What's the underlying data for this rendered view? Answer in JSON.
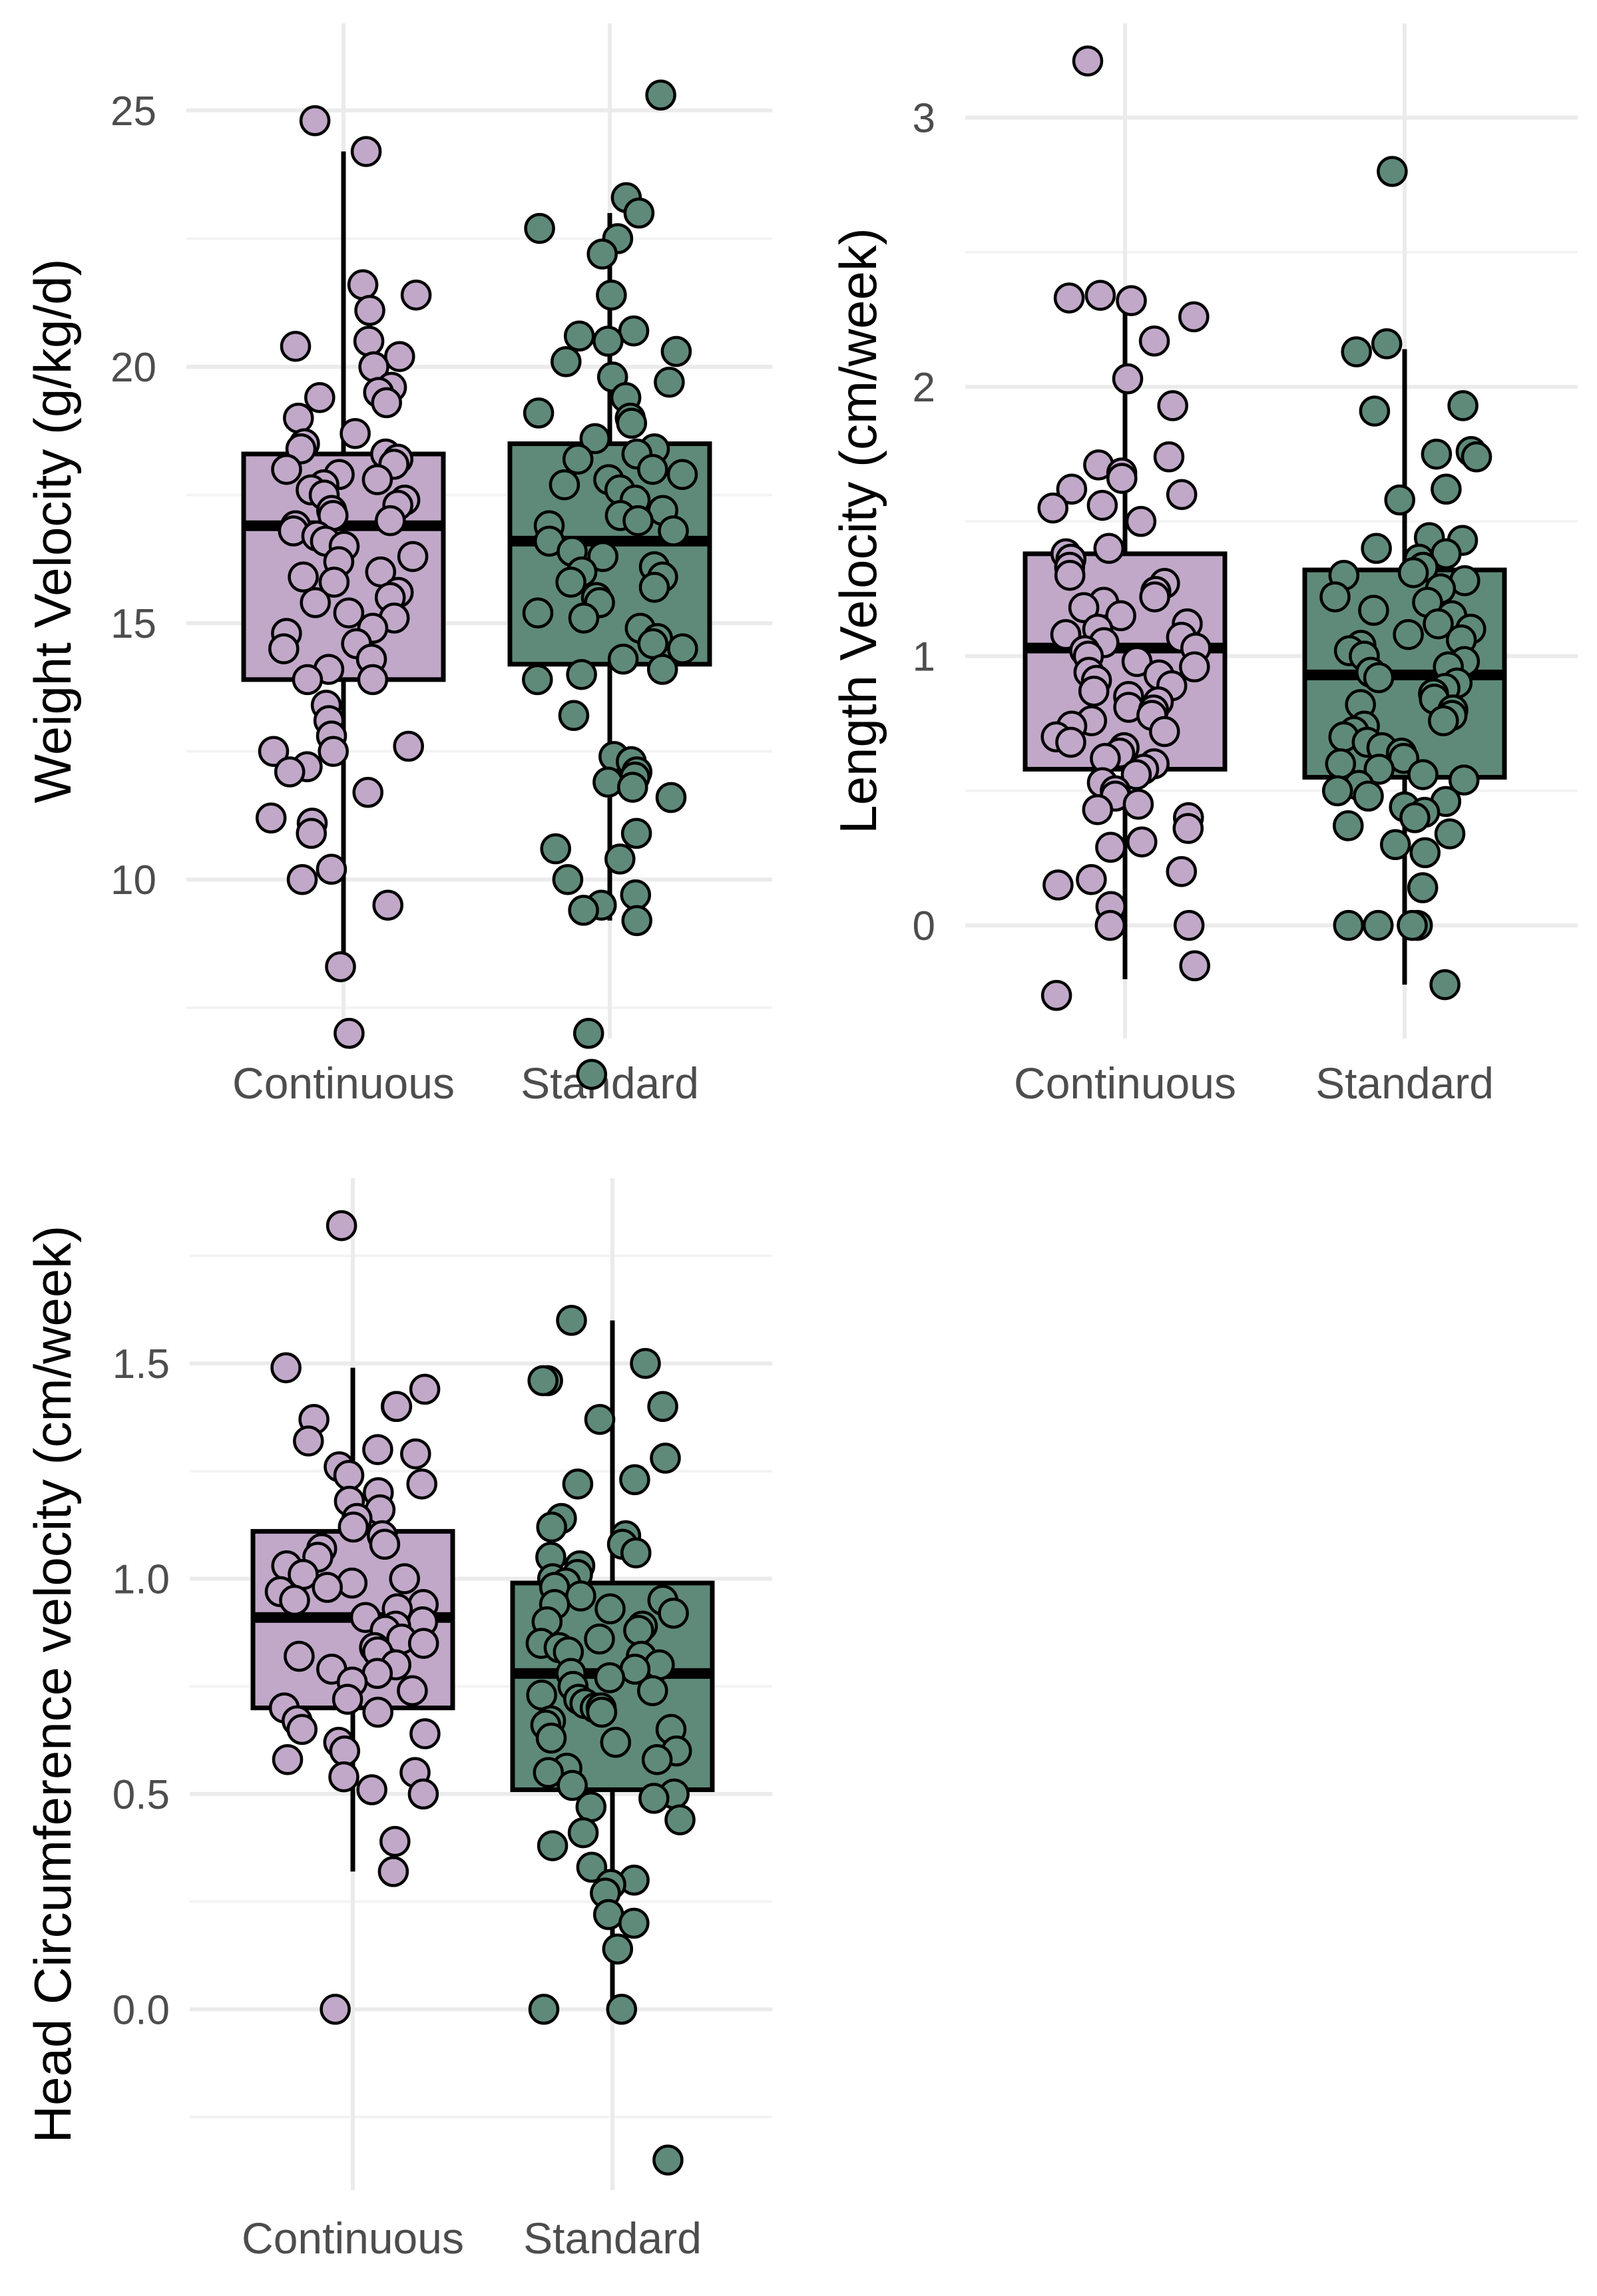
{
  "colors": {
    "Continuous": "#C1A7C8",
    "Standard": "#5F8A79",
    "grid_major": "#EBEBEB",
    "grid_minor": "#F3F3F3",
    "text": "#4D4D4D",
    "outline": "#000000"
  },
  "chart_data": [
    {
      "type": "box",
      "title": "",
      "xlabel": "",
      "ylabel": "Weight Velocity (g/kg/d)",
      "categories": [
        "Continuous",
        "Standard"
      ],
      "ylim": [
        6.9,
        26.7
      ],
      "yticks": [
        10,
        15,
        20,
        25
      ],
      "ytick_labels": [
        "10",
        "15",
        "20",
        "25"
      ],
      "grid": true,
      "legend": "none",
      "boxes": [
        {
          "name": "Continuous",
          "q1": 13.9,
          "median": 16.9,
          "q3": 18.3,
          "whisker_low": 8.3,
          "whisker_high": 24.2
        },
        {
          "name": "Standard",
          "q1": 14.2,
          "median": 16.6,
          "q3": 18.5,
          "whisker_low": 9.2,
          "whisker_high": 23.0
        }
      ],
      "points": [
        [
          24.2,
          24.8,
          21.6,
          21.4,
          21.1,
          20.5,
          20.4,
          20.2,
          20.0,
          19.6,
          19.5,
          19.4,
          19.3,
          19.0,
          18.7,
          18.5,
          18.4,
          18.3,
          18.2,
          18.1,
          18.0,
          17.9,
          17.8,
          17.7,
          17.6,
          17.5,
          17.4,
          17.3,
          17.2,
          17.1,
          17.0,
          16.9,
          16.8,
          16.7,
          16.6,
          16.5,
          16.3,
          16.2,
          16.0,
          15.9,
          15.8,
          15.6,
          15.5,
          15.4,
          15.2,
          15.1,
          14.9,
          14.8,
          14.6,
          14.5,
          14.3,
          14.1,
          13.9,
          13.9,
          13.4,
          13.1,
          12.8,
          12.6,
          12.5,
          12.5,
          12.2,
          12.1,
          11.7,
          11.2,
          11.1,
          10.9,
          10.2,
          10.0,
          9.5,
          8.3,
          7.0
        ],
        [
          25.3,
          23.3,
          23.0,
          22.7,
          22.5,
          22.2,
          21.4,
          20.7,
          20.6,
          20.5,
          20.3,
          20.1,
          19.8,
          19.7,
          19.4,
          19.1,
          19.0,
          18.9,
          18.6,
          18.4,
          18.3,
          18.2,
          18.0,
          17.9,
          17.8,
          17.7,
          17.6,
          17.4,
          17.2,
          17.1,
          17.0,
          16.9,
          16.8,
          16.6,
          16.4,
          16.3,
          16.1,
          16.0,
          15.9,
          15.8,
          15.7,
          15.5,
          15.4,
          15.2,
          15.1,
          14.9,
          14.7,
          14.6,
          14.5,
          14.3,
          14.1,
          14.0,
          13.9,
          13.2,
          12.4,
          12.3,
          12.1,
          12.0,
          11.9,
          11.8,
          11.6,
          10.9,
          10.6,
          10.4,
          10.0,
          9.7,
          9.5,
          9.4,
          9.2,
          7.0,
          6.2
        ]
      ]
    },
    {
      "type": "box",
      "title": "",
      "xlabel": "",
      "ylabel": "Length Velocity (cm/week)",
      "categories": [
        "Continuous",
        "Standard"
      ],
      "ylim": [
        -0.42,
        3.35
      ],
      "yticks": [
        0,
        1,
        2,
        3
      ],
      "ytick_labels": [
        "0",
        "1",
        "2",
        "3"
      ],
      "grid": true,
      "legend": "none",
      "boxes": [
        {
          "name": "Continuous",
          "q1": 0.58,
          "median": 1.03,
          "q3": 1.38,
          "whisker_low": -0.2,
          "whisker_high": 2.34
        },
        {
          "name": "Standard",
          "q1": 0.55,
          "median": 0.93,
          "q3": 1.32,
          "whisker_low": -0.22,
          "whisker_high": 2.14
        }
      ],
      "points": [
        [
          3.21,
          2.34,
          2.33,
          2.32,
          2.26,
          2.17,
          2.03,
          1.93,
          1.74,
          1.71,
          1.68,
          1.66,
          1.62,
          1.6,
          1.56,
          1.55,
          1.5,
          1.4,
          1.38,
          1.36,
          1.33,
          1.3,
          1.27,
          1.24,
          1.22,
          1.2,
          1.18,
          1.15,
          1.12,
          1.1,
          1.08,
          1.07,
          1.05,
          1.03,
          1.02,
          1.0,
          0.98,
          0.96,
          0.94,
          0.93,
          0.91,
          0.89,
          0.87,
          0.85,
          0.83,
          0.81,
          0.8,
          0.78,
          0.76,
          0.74,
          0.72,
          0.7,
          0.68,
          0.66,
          0.64,
          0.62,
          0.6,
          0.58,
          0.56,
          0.53,
          0.5,
          0.48,
          0.45,
          0.43,
          0.4,
          0.36,
          0.31,
          0.29,
          0.2,
          0.17,
          0.15,
          0.07,
          0.0,
          0.0,
          -0.15,
          -0.26
        ],
        [
          2.8,
          2.16,
          2.13,
          1.93,
          1.91,
          1.76,
          1.75,
          1.74,
          1.62,
          1.58,
          1.44,
          1.43,
          1.4,
          1.38,
          1.36,
          1.33,
          1.31,
          1.3,
          1.28,
          1.25,
          1.22,
          1.2,
          1.17,
          1.15,
          1.12,
          1.1,
          1.08,
          1.06,
          1.04,
          1.02,
          1.0,
          0.98,
          0.96,
          0.94,
          0.92,
          0.9,
          0.88,
          0.86,
          0.84,
          0.82,
          0.8,
          0.78,
          0.76,
          0.74,
          0.72,
          0.7,
          0.68,
          0.66,
          0.64,
          0.62,
          0.6,
          0.58,
          0.56,
          0.54,
          0.52,
          0.5,
          0.48,
          0.46,
          0.44,
          0.42,
          0.4,
          0.37,
          0.34,
          0.3,
          0.27,
          0.14,
          0.0,
          0.0,
          0.0,
          0.0,
          -0.22
        ]
      ]
    },
    {
      "type": "box",
      "title": "",
      "xlabel": "",
      "ylabel": "Head Circumference velocity (cm/week)",
      "categories": [
        "Continuous",
        "Standard"
      ],
      "ylim": [
        -0.42,
        1.93
      ],
      "yticks": [
        0.0,
        0.5,
        1.0,
        1.5
      ],
      "ytick_labels": [
        "0.0",
        "0.5",
        "1.0",
        "1.5"
      ],
      "grid": true,
      "legend": "none",
      "boxes": [
        {
          "name": "Continuous",
          "q1": 0.7,
          "median": 0.91,
          "q3": 1.11,
          "whisker_low": 0.32,
          "whisker_high": 1.49
        },
        {
          "name": "Standard",
          "q1": 0.51,
          "median": 0.78,
          "q3": 0.99,
          "whisker_low": 0.0,
          "whisker_high": 1.6
        }
      ],
      "points": [
        [
          1.82,
          1.49,
          1.44,
          1.4,
          1.4,
          1.37,
          1.32,
          1.3,
          1.29,
          1.26,
          1.24,
          1.22,
          1.2,
          1.18,
          1.16,
          1.14,
          1.12,
          1.1,
          1.08,
          1.07,
          1.05,
          1.03,
          1.01,
          1.0,
          0.99,
          0.98,
          0.97,
          0.95,
          0.94,
          0.93,
          0.91,
          0.9,
          0.89,
          0.88,
          0.86,
          0.85,
          0.84,
          0.83,
          0.82,
          0.8,
          0.79,
          0.78,
          0.76,
          0.74,
          0.72,
          0.7,
          0.69,
          0.67,
          0.65,
          0.64,
          0.62,
          0.6,
          0.58,
          0.55,
          0.54,
          0.51,
          0.5,
          0.39,
          0.32,
          0.0
        ],
        [
          1.6,
          1.5,
          1.46,
          1.46,
          1.4,
          1.37,
          1.28,
          1.23,
          1.22,
          1.14,
          1.12,
          1.1,
          1.08,
          1.06,
          1.05,
          1.03,
          1.01,
          1.0,
          0.99,
          0.98,
          0.96,
          0.95,
          0.94,
          0.93,
          0.92,
          0.9,
          0.89,
          0.88,
          0.86,
          0.85,
          0.84,
          0.83,
          0.82,
          0.8,
          0.79,
          0.78,
          0.77,
          0.75,
          0.74,
          0.73,
          0.72,
          0.71,
          0.7,
          0.7,
          0.69,
          0.67,
          0.66,
          0.65,
          0.63,
          0.62,
          0.6,
          0.58,
          0.56,
          0.55,
          0.52,
          0.5,
          0.49,
          0.47,
          0.44,
          0.41,
          0.38,
          0.33,
          0.3,
          0.29,
          0.27,
          0.22,
          0.2,
          0.14,
          0.0,
          0.0,
          -0.35
        ]
      ]
    }
  ]
}
